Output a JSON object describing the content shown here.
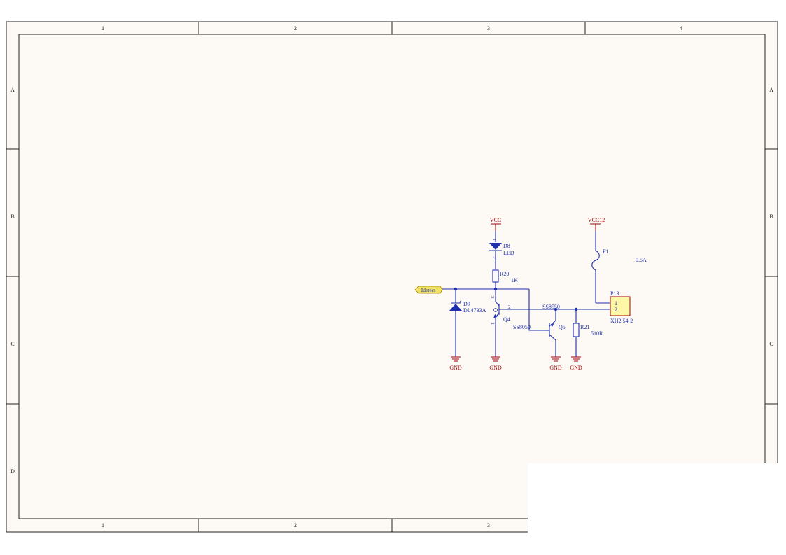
{
  "sheet": {
    "columns": [
      "1",
      "2",
      "3",
      "4"
    ],
    "rows": [
      "A",
      "B",
      "C",
      "D"
    ],
    "bottom_columns": [
      "1",
      "2",
      "3"
    ]
  },
  "power": {
    "vcc": "VCC",
    "vcc12": "VCC12",
    "gnd": "GND"
  },
  "net_port": {
    "label": "Idetect"
  },
  "components": {
    "d8": {
      "designator": "D8",
      "value": "LED",
      "pin_top": "1",
      "pin_bottom": "2"
    },
    "r20": {
      "designator": "R20",
      "value": "1K"
    },
    "d9": {
      "designator": "D9",
      "value": "DL4733A"
    },
    "q4": {
      "designator": "Q4",
      "value": "SS8050",
      "pin1": "1",
      "pin2": "2",
      "pin3": "3"
    },
    "q5": {
      "designator": "Q5",
      "value": "SS8550"
    },
    "r21": {
      "designator": "R21",
      "value": "510R"
    },
    "f1": {
      "designator": "F1",
      "value": "0.5A"
    },
    "p13": {
      "designator": "P13",
      "value": "XH2.54-2",
      "pin1": "1",
      "pin2": "2"
    }
  },
  "colors": {
    "sheet_bg": "#fdf9f4",
    "wire": "#1e2fb0",
    "power": "#a10000",
    "connector_fill": "#fff7a8",
    "port_fill": "#f0e264"
  }
}
